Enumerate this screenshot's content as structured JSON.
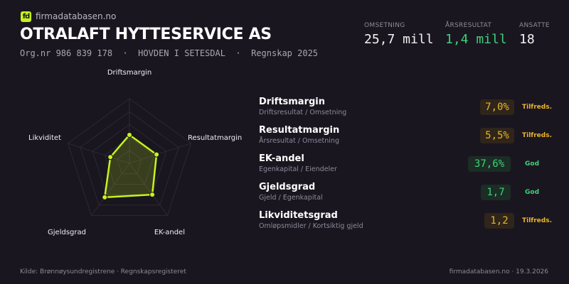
{
  "brand": {
    "logo_text": "fd",
    "site": "firmadatabasen.no",
    "accent": "#c6f31c"
  },
  "company": {
    "name": "OTRALAFT HYTTESERVICE AS",
    "subtitle": "Org.nr 986 839 178  ·  HOVDEN I SETESDAL  ·  Regnskap 2025"
  },
  "stats": [
    {
      "label": "OMSETNING",
      "value": "25,7 mill"
    },
    {
      "label": "ÅRSRESULTAT",
      "value": "1,4 mill"
    },
    {
      "label": "ANSATTE",
      "value": "18"
    }
  ],
  "chart_data": {
    "type": "radar",
    "axes": [
      "Driftsmargin",
      "Resultatmargin",
      "EK-andel",
      "Gjeldsgrad",
      "Likviditet"
    ],
    "values": [
      0.44,
      0.44,
      0.6,
      0.65,
      0.31
    ],
    "range": [
      0,
      1
    ],
    "rings": 5,
    "color": "#c6f31c"
  },
  "metrics": [
    {
      "name": "Driftsmargin",
      "formula": "Driftsresultat / Omsetning",
      "value": "7,0%",
      "rating": "Tilfreds.",
      "status": "warn"
    },
    {
      "name": "Resultatmargin",
      "formula": "Årsresultat / Omsetning",
      "value": "5,5%",
      "rating": "Tilfreds.",
      "status": "warn"
    },
    {
      "name": "EK-andel",
      "formula": "Egenkapital / Eiendeler",
      "value": "37,6%",
      "rating": "God",
      "status": "good"
    },
    {
      "name": "Gjeldsgrad",
      "formula": "Gjeld / Egenkapital",
      "value": "1,7",
      "rating": "God",
      "status": "good"
    },
    {
      "name": "Likviditetsgrad",
      "formula": "Omløpsmidler / Kortsiktig gjeld",
      "value": "1,2",
      "rating": "Tilfreds.",
      "status": "warn"
    }
  ],
  "footer": {
    "source": "Kilde: Brønnøysundregistrene · Regnskapsregisteret",
    "right": "firmadatabasen.no · 19.3.2026"
  }
}
